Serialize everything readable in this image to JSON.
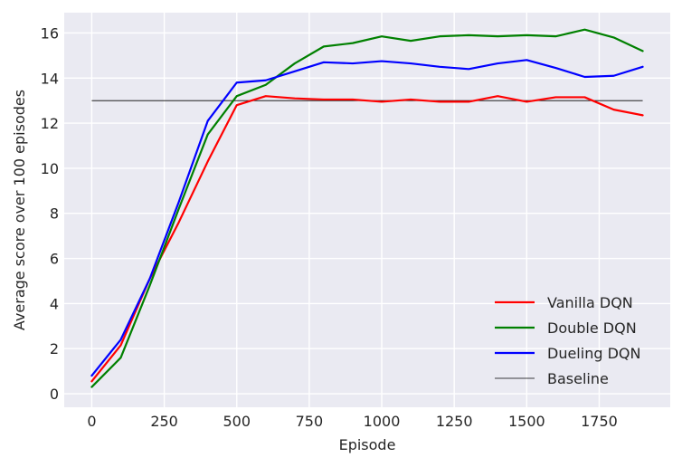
{
  "chart_data": {
    "type": "line",
    "title": "",
    "xlabel": "Episode",
    "ylabel": "Average score over 100 episodes",
    "xlim": [
      -95,
      1995
    ],
    "ylim": [
      -0.6,
      16.9
    ],
    "xticks": [
      0,
      250,
      500,
      750,
      1000,
      1250,
      1500,
      1750
    ],
    "yticks": [
      0,
      2,
      4,
      6,
      8,
      10,
      12,
      14,
      16
    ],
    "grid": true,
    "legend_position": "lower-right",
    "x": [
      0,
      100,
      200,
      300,
      400,
      500,
      600,
      700,
      800,
      900,
      1000,
      1100,
      1200,
      1300,
      1400,
      1500,
      1600,
      1700,
      1800,
      1900
    ],
    "series": [
      {
        "name": "Vanilla DQN",
        "color": "#ff0000",
        "values": [
          0.55,
          2.15,
          5.1,
          7.6,
          10.3,
          12.8,
          13.2,
          13.1,
          13.05,
          13.05,
          12.95,
          13.05,
          12.95,
          12.95,
          13.2,
          12.95,
          13.15,
          13.15,
          12.6,
          12.35
        ]
      },
      {
        "name": "Double DQN",
        "color": "#008000",
        "values": [
          0.3,
          1.6,
          4.8,
          8.2,
          11.5,
          13.2,
          13.7,
          14.65,
          15.4,
          15.55,
          15.85,
          15.65,
          15.85,
          15.9,
          15.85,
          15.9,
          15.85,
          16.15,
          15.8,
          15.2
        ]
      },
      {
        "name": "Dueling DQN",
        "color": "#0000ff",
        "values": [
          0.8,
          2.4,
          5.1,
          8.5,
          12.1,
          13.8,
          13.9,
          14.3,
          14.7,
          14.65,
          14.75,
          14.65,
          14.5,
          14.4,
          14.65,
          14.8,
          14.45,
          14.05,
          14.1,
          14.5
        ]
      }
    ],
    "baseline": {
      "name": "Baseline",
      "value": 13,
      "color": "#000000",
      "x_range": [
        0,
        1900
      ]
    }
  }
}
